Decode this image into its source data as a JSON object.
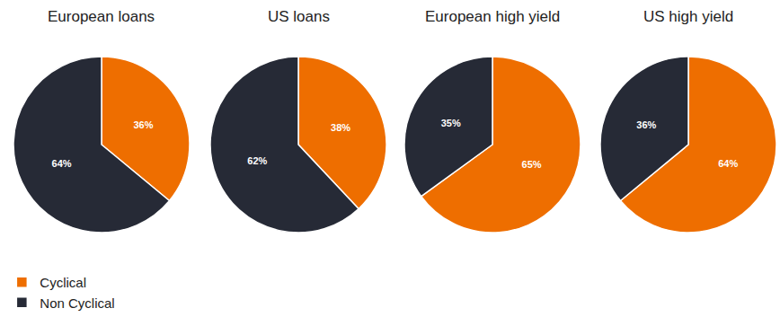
{
  "chart_data": [
    {
      "type": "pie",
      "title": "European loans",
      "categories": [
        "Cyclical",
        "Non Cyclical"
      ],
      "values": [
        36,
        64
      ],
      "value_labels": [
        "36%",
        "64%"
      ],
      "colors": [
        "#ee6e00",
        "#262a36"
      ],
      "data_labels": true,
      "legend": "bottom left"
    },
    {
      "type": "pie",
      "title": "US loans",
      "categories": [
        "Cyclical",
        "Non Cyclical"
      ],
      "values": [
        38,
        62
      ],
      "value_labels": [
        "38%",
        "62%"
      ],
      "colors": [
        "#ee6e00",
        "#262a36"
      ],
      "data_labels": true
    },
    {
      "type": "pie",
      "title": "European high yield",
      "categories": [
        "Cyclical",
        "Non Cyclical"
      ],
      "values": [
        65,
        35
      ],
      "value_labels": [
        "65%",
        "35%"
      ],
      "colors": [
        "#ee6e00",
        "#262a36"
      ],
      "data_labels": true
    },
    {
      "type": "pie",
      "title": "US high yield",
      "categories": [
        "Cyclical",
        "Non Cyclical"
      ],
      "values": [
        64,
        36
      ],
      "value_labels": [
        "64%",
        "36%"
      ],
      "colors": [
        "#ee6e00",
        "#262a36"
      ],
      "data_labels": true
    }
  ]
}
